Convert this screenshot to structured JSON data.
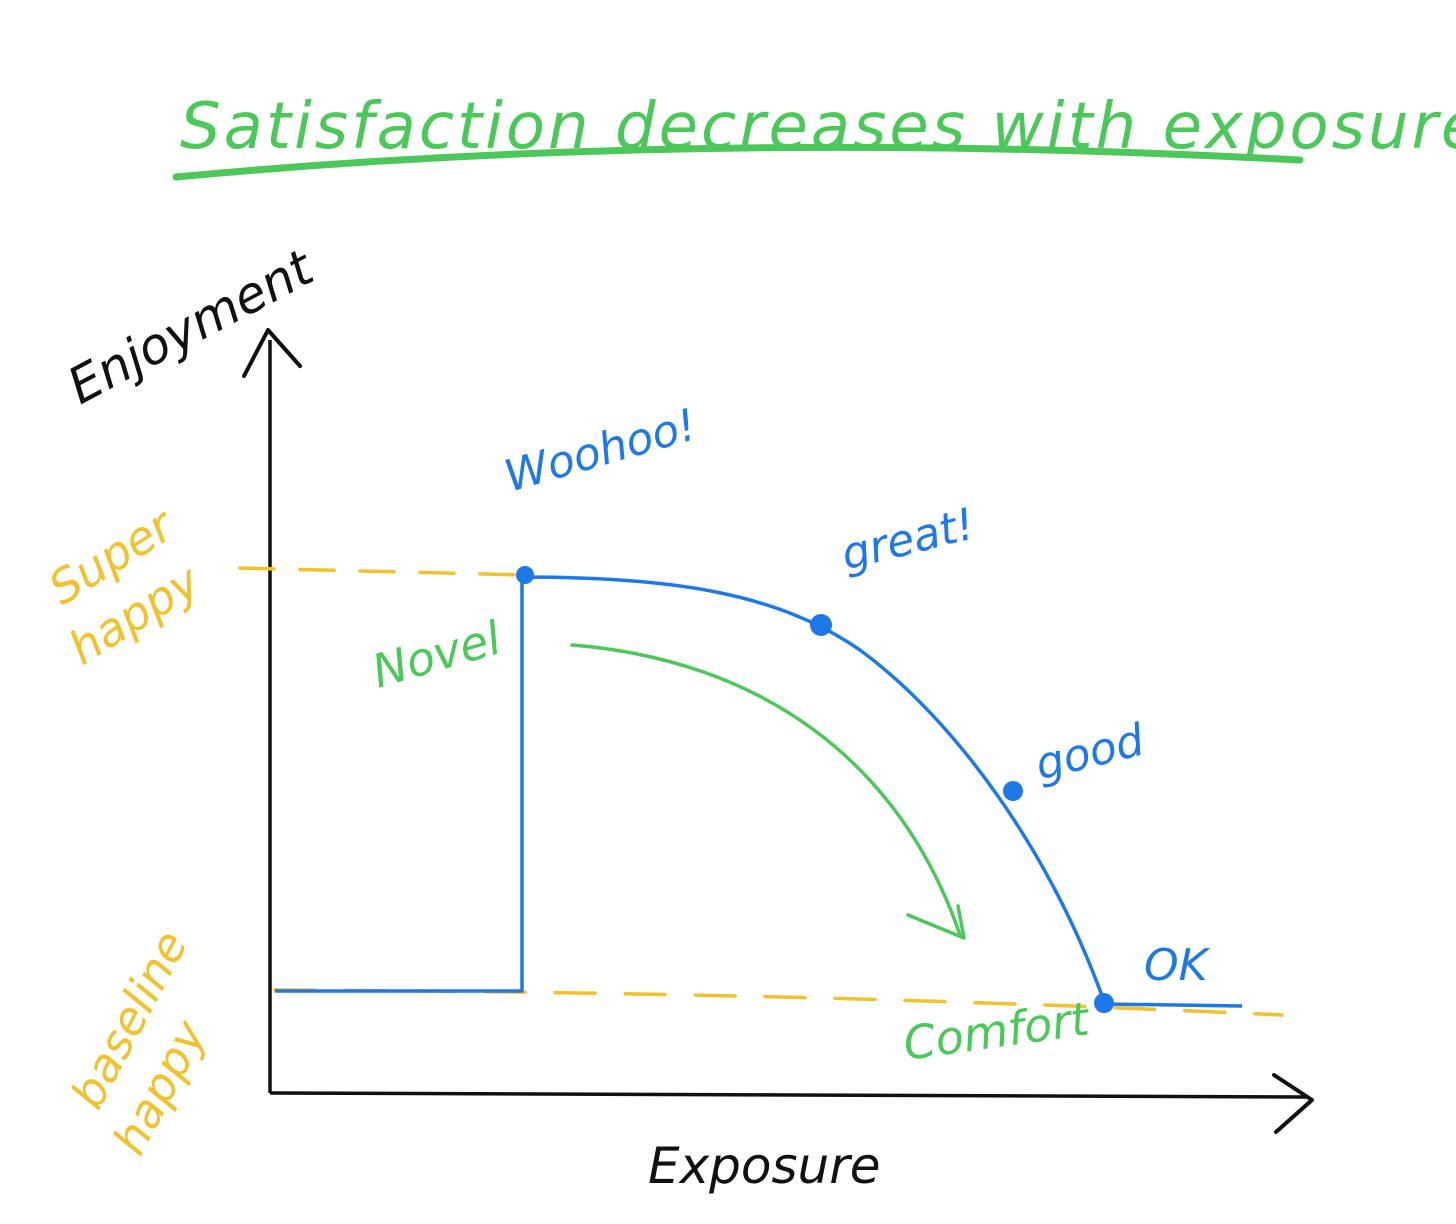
{
  "title": "Satisfaction decreases with exposure",
  "axes": {
    "y_label": "Enjoyment",
    "x_label": "Exposure"
  },
  "levels": {
    "super_line1": "Super",
    "super_line2": "happy",
    "baseline_line1": "baseline",
    "baseline_line2": "happy"
  },
  "points": {
    "woohoo": "Woohoo!",
    "great": "great!",
    "good": "good",
    "ok": "OK"
  },
  "phases": {
    "novel": "Novel",
    "comfort": "Comfort"
  },
  "colors": {
    "title": "#4cc85a",
    "axes": "#111111",
    "curve": "#1e78e6",
    "levels": "#f2c12e",
    "phases": "#4cc85a"
  }
}
